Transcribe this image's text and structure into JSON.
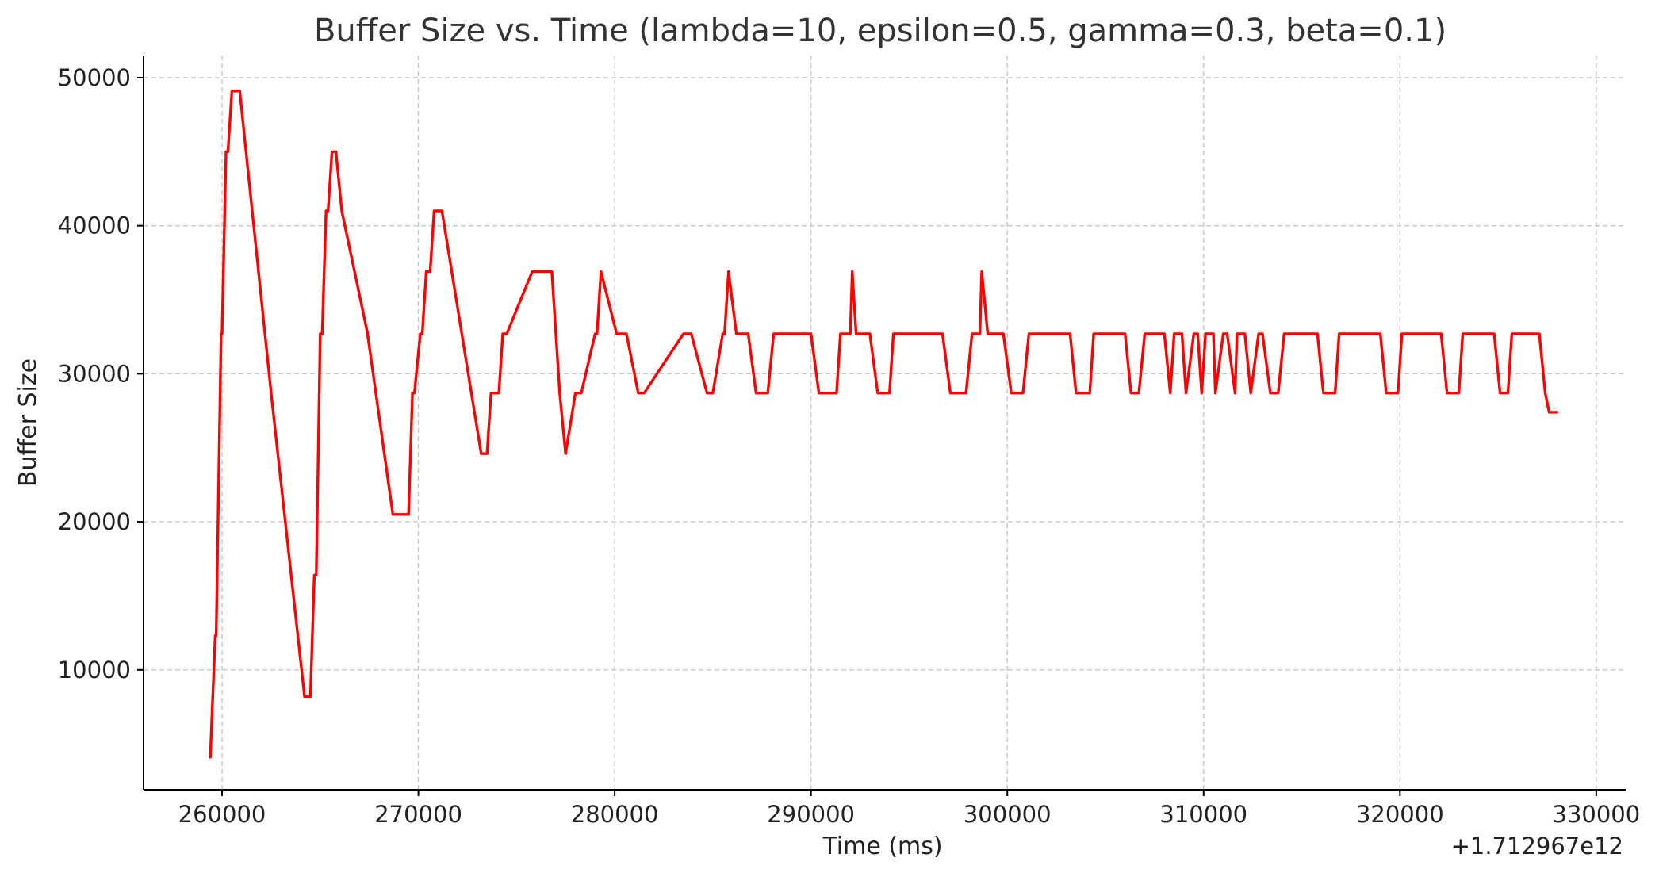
{
  "chart_data": {
    "type": "line",
    "title": "Buffer Size vs. Time (lambda=10, epsilon=0.5, gamma=0.3, beta=0.1)",
    "xlabel": "Time (ms)",
    "ylabel": "Buffer Size",
    "x_offset_label": "+1.712967e12",
    "xlim": [
      256000,
      331500
    ],
    "ylim": [
      1900,
      51500
    ],
    "xticks": [
      260000,
      270000,
      280000,
      290000,
      300000,
      310000,
      320000,
      330000
    ],
    "xtick_labels": [
      "260000",
      "270000",
      "280000",
      "290000",
      "300000",
      "310000",
      "320000",
      "330000"
    ],
    "yticks": [
      10000,
      20000,
      30000,
      40000,
      50000
    ],
    "ytick_labels": [
      "10000",
      "20000",
      "30000",
      "40000",
      "50000"
    ],
    "grid": true,
    "series": [
      {
        "color": "#ff0000",
        "x": [
          259400,
          259650,
          259700,
          259950,
          260000,
          260200,
          260300,
          260500,
          260550,
          260900,
          262500,
          264200,
          264500,
          264700,
          264800,
          265000,
          265100,
          265300,
          265400,
          265600,
          265800,
          266100,
          267400,
          268700,
          269500,
          269700,
          269800,
          270100,
          270200,
          270400,
          270600,
          270800,
          271200,
          272700,
          273200,
          273500,
          273700,
          274100,
          274300,
          274500,
          275800,
          276800,
          277200,
          277500,
          278000,
          278300,
          279000,
          279100,
          279300,
          280100,
          280600,
          281200,
          281500,
          283500,
          283900,
          284700,
          285000,
          285500,
          285600,
          285800,
          286200,
          286800,
          287200,
          287800,
          288100,
          290000,
          290400,
          291300,
          291500,
          292000,
          292100,
          292300,
          293000,
          293400,
          294000,
          294200,
          296700,
          297100,
          297900,
          298200,
          298600,
          298700,
          299000,
          299800,
          300200,
          300800,
          301100,
          303200,
          303500,
          304200,
          304400,
          306000,
          306300,
          306700,
          307000,
          308000,
          308300,
          308500,
          308900,
          309100,
          309500,
          309700,
          309900,
          310100,
          310500,
          310600,
          311000,
          311200,
          311600,
          311700,
          312100,
          312400,
          312800,
          313000,
          313400,
          313800,
          314100,
          315800,
          316100,
          316700,
          316900,
          319000,
          319300,
          319900,
          320100,
          322100,
          322400,
          323000,
          323200,
          324800,
          325100,
          325500,
          325700,
          327100,
          327400,
          327600,
          328000
        ],
        "y": [
          4100,
          12300,
          12300,
          32700,
          32700,
          45000,
          45000,
          49100,
          49100,
          49100,
          28700,
          8200,
          8200,
          16400,
          16400,
          32700,
          32700,
          41000,
          41000,
          45000,
          45000,
          41000,
          32800,
          20500,
          20500,
          28700,
          28700,
          32700,
          32700,
          36900,
          36900,
          41000,
          41000,
          28700,
          24600,
          24600,
          28700,
          28700,
          32700,
          32700,
          36900,
          36900,
          28700,
          24600,
          28700,
          28700,
          32700,
          32700,
          36900,
          32700,
          32700,
          28700,
          28700,
          32700,
          32700,
          28700,
          28700,
          32700,
          32700,
          36900,
          32700,
          32700,
          28700,
          28700,
          32700,
          32700,
          28700,
          28700,
          32700,
          32700,
          36900,
          32700,
          32700,
          28700,
          28700,
          32700,
          32700,
          28700,
          28700,
          32700,
          32700,
          36900,
          32700,
          32700,
          28700,
          28700,
          32700,
          32700,
          28700,
          28700,
          32700,
          32700,
          28700,
          28700,
          32700,
          32700,
          28700,
          32700,
          32700,
          28700,
          32700,
          32700,
          28700,
          32700,
          32700,
          28700,
          32700,
          32700,
          28700,
          32700,
          32700,
          28700,
          32700,
          32700,
          28700,
          28700,
          32700,
          32700,
          28700,
          28700,
          32700,
          32700,
          28700,
          28700,
          32700,
          32700,
          28700,
          28700,
          32700,
          32700,
          28700,
          28700,
          32700,
          32700,
          28700,
          27400,
          27400
        ]
      }
    ]
  }
}
